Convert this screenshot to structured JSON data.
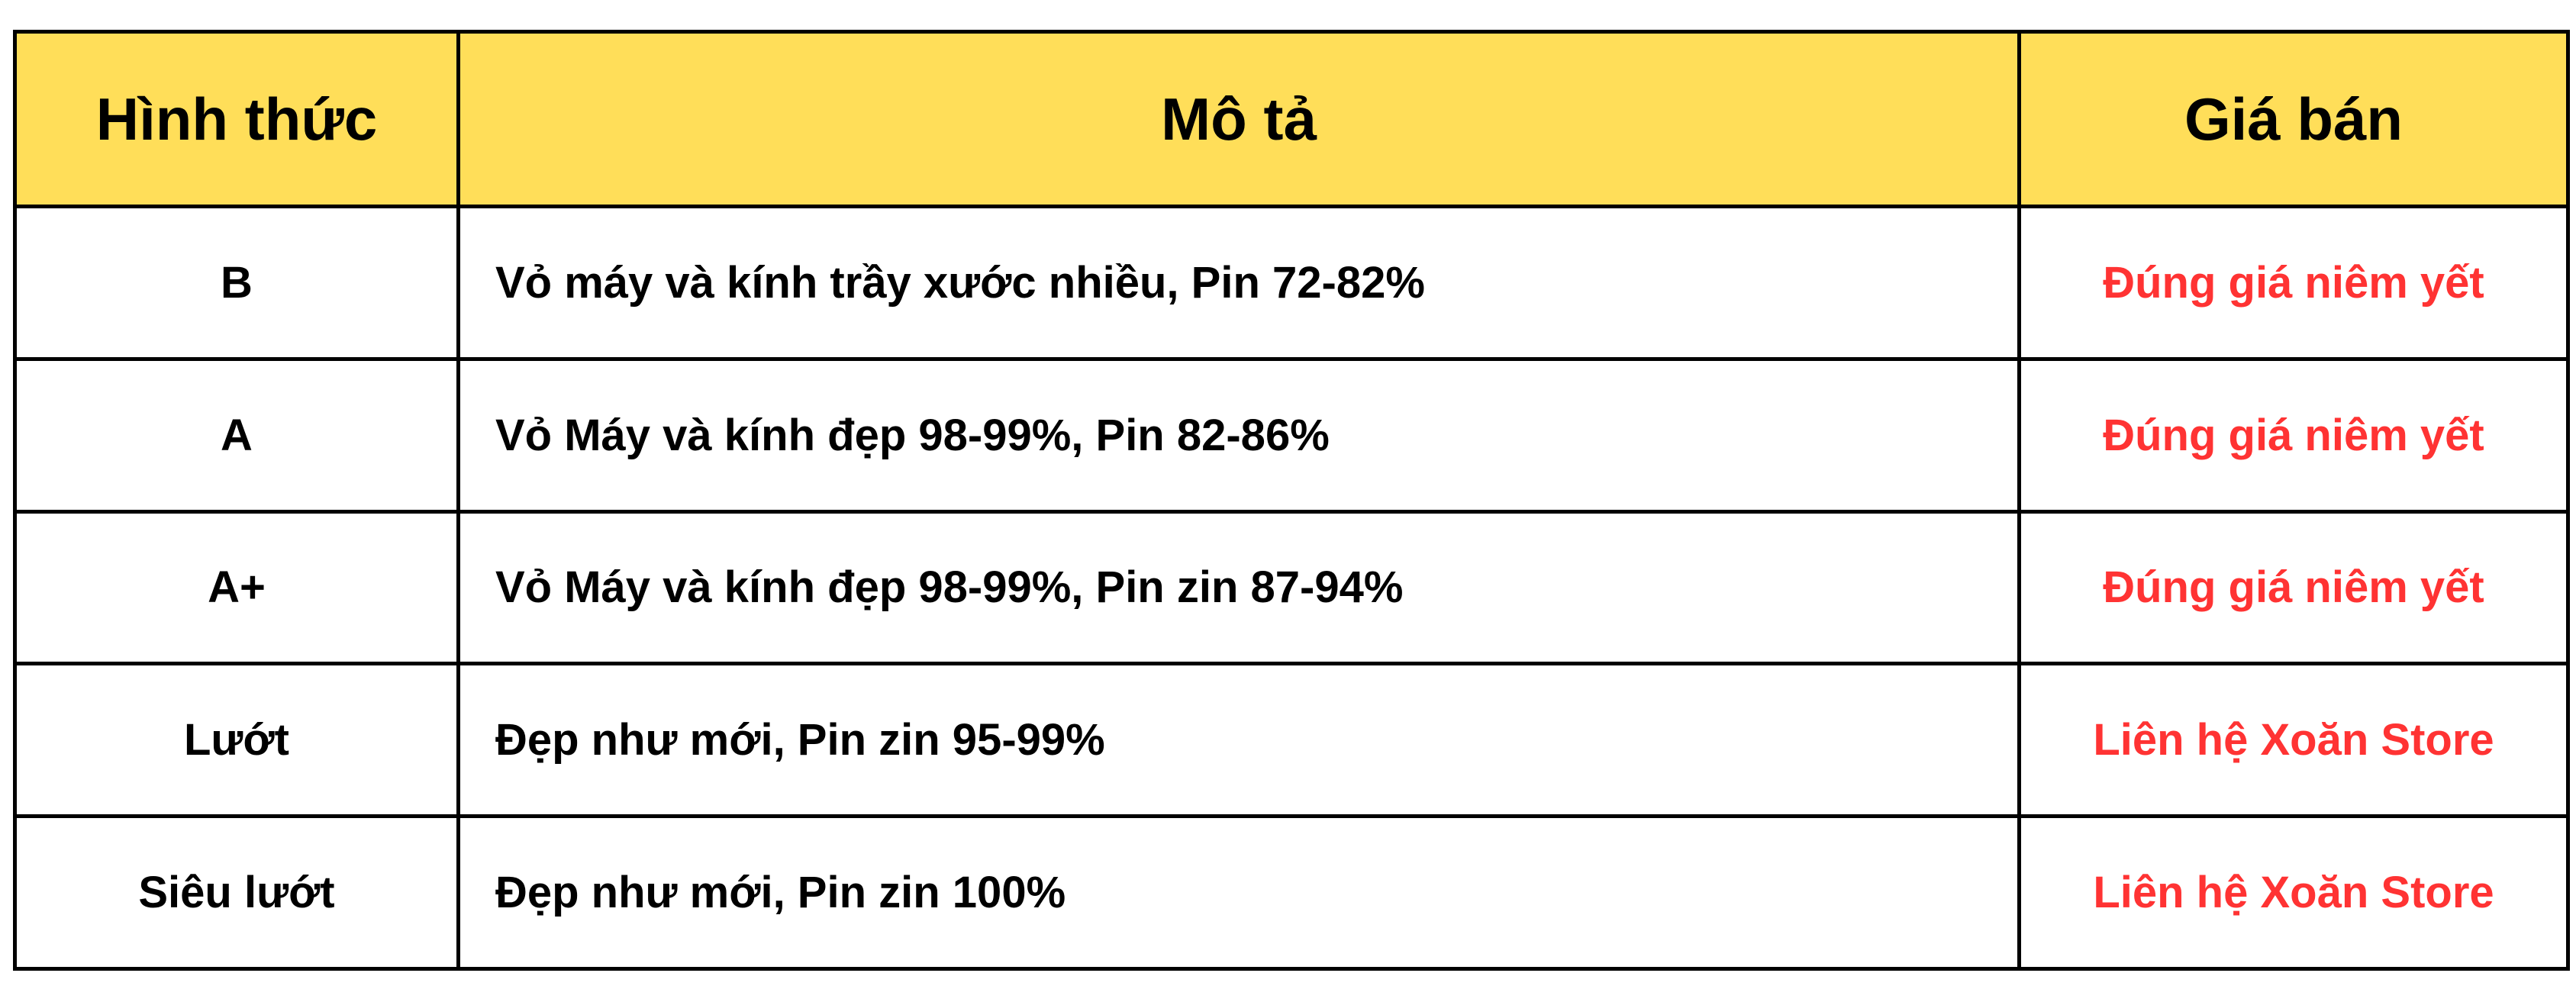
{
  "colors": {
    "header_bg": "#FFDE59",
    "price_text": "#FF3333",
    "border": "#000000"
  },
  "table": {
    "headers": [
      "Hình thức",
      "Mô tả",
      "Giá bán"
    ],
    "rows": [
      [
        "B",
        "Vỏ máy và kính trầy xước nhiều, Pin 72-82%",
        "Đúng giá niêm yết"
      ],
      [
        "A",
        "Vỏ Máy và kính đẹp 98-99%, Pin 82-86%",
        "Đúng giá niêm yết"
      ],
      [
        "A+",
        "Vỏ Máy và kính đẹp 98-99%, Pin zin 87-94%",
        "Đúng giá niêm yết"
      ],
      [
        "Lướt",
        "Đẹp như mới, Pin zin 95-99%",
        "Liên hệ Xoăn Store"
      ],
      [
        "Siêu lướt",
        "Đẹp như mới, Pin zin 100%",
        "Liên hệ Xoăn Store"
      ]
    ]
  }
}
